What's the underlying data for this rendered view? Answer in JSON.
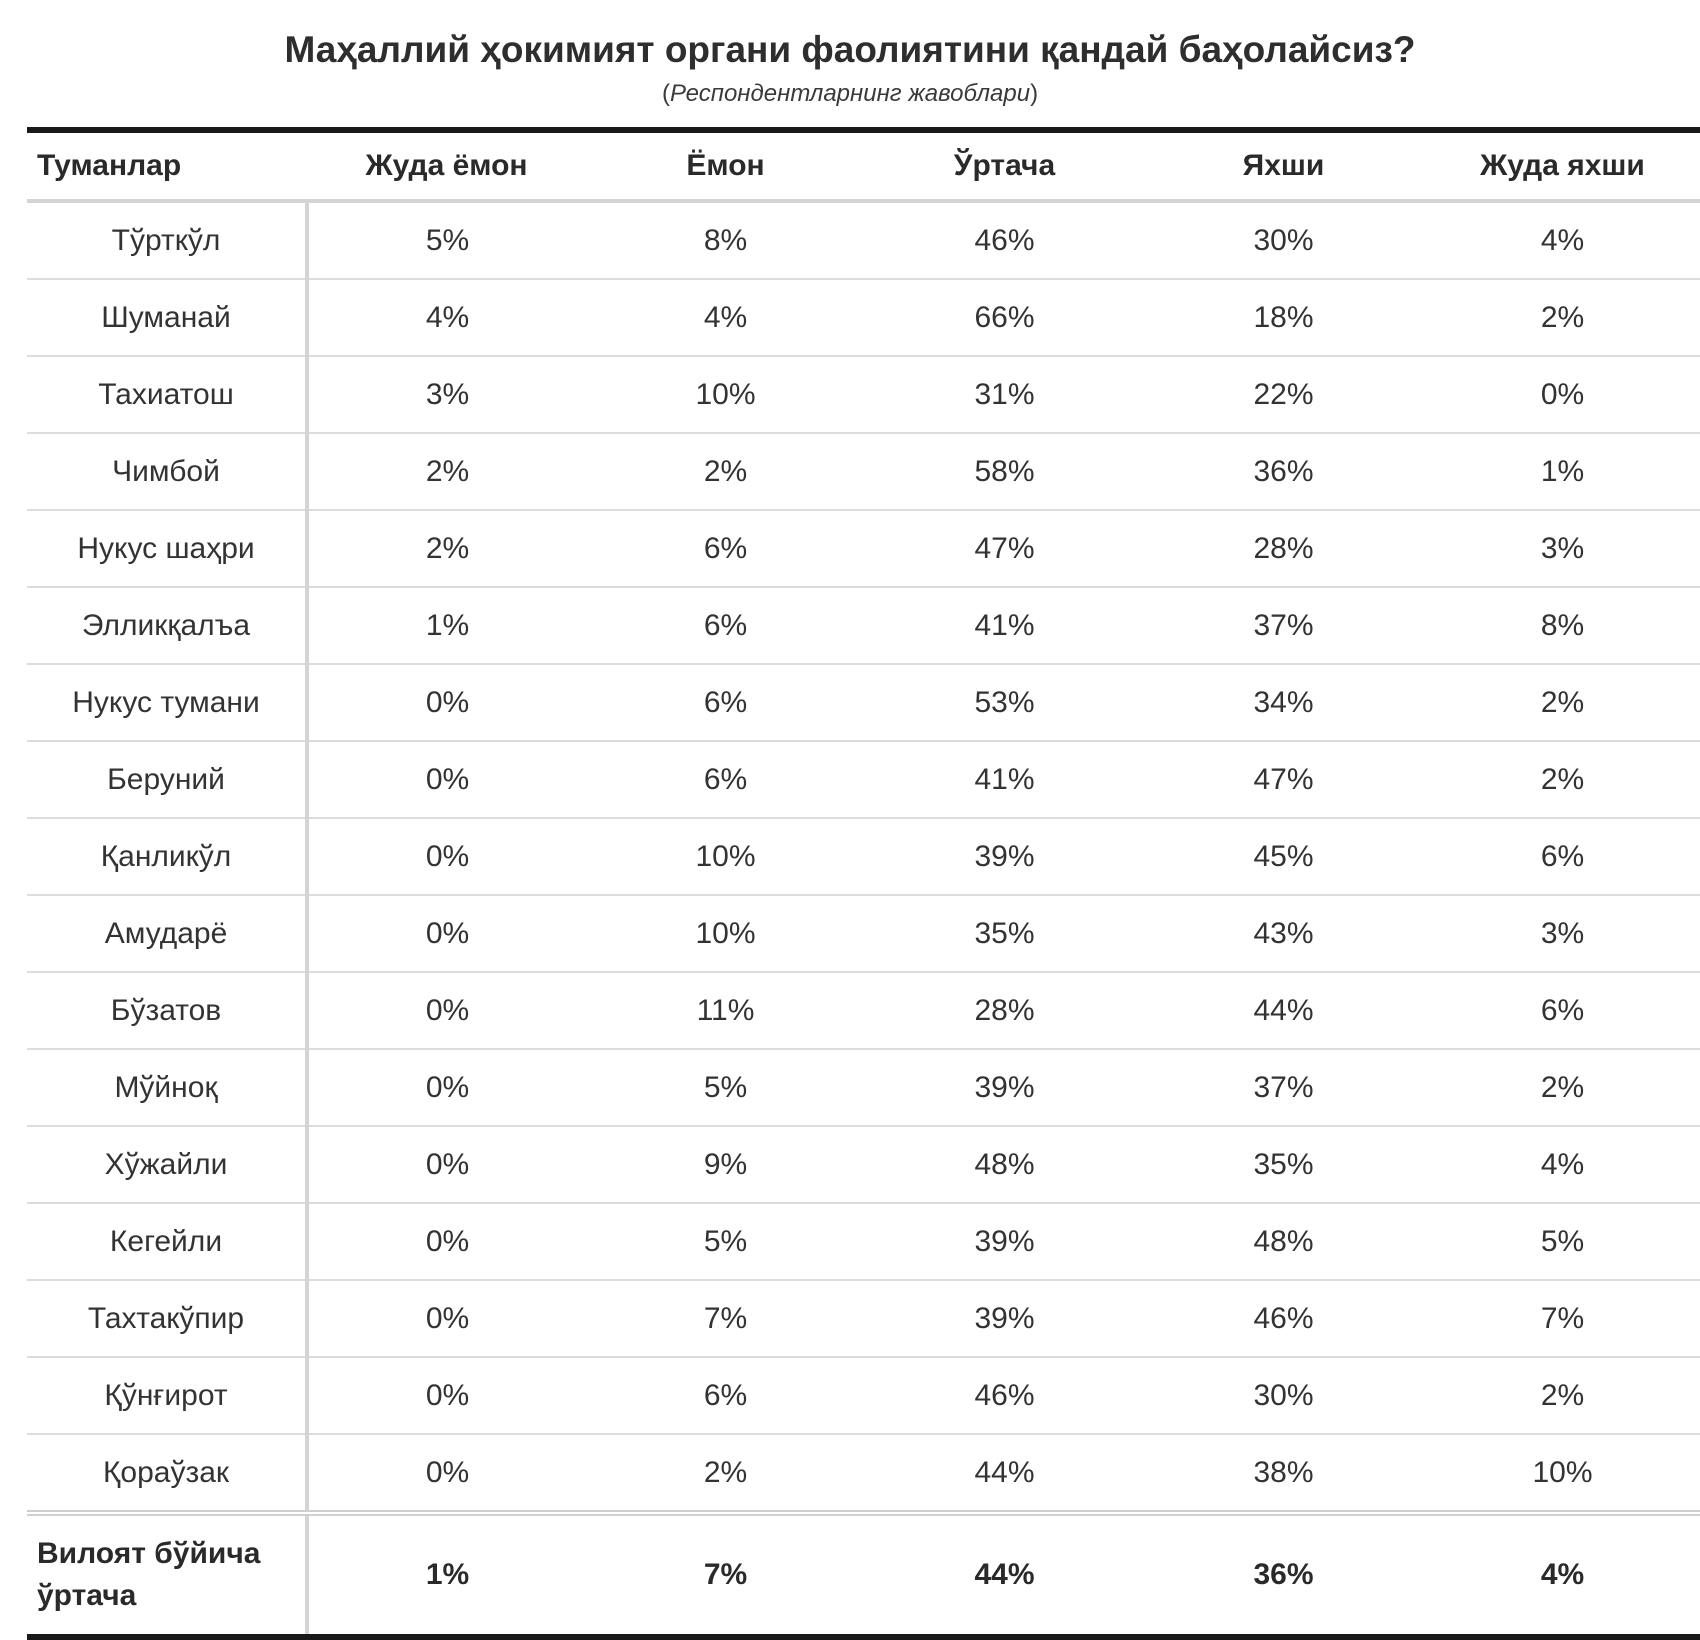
{
  "title": "Маҳаллий ҳокимият органи фаолиятини қандай баҳолайсиз?",
  "subtitle": {
    "open": "(",
    "text": "Респондентларнинг жавоблари",
    "close": ")"
  },
  "table": {
    "headers": [
      "Туманлар",
      "Жуда ёмон",
      "Ёмон",
      "Ўртача",
      "Яхши",
      "Жуда яхши"
    ],
    "rows": [
      {
        "name": "Тўрткўл",
        "values": [
          "5%",
          "8%",
          "46%",
          "30%",
          "4%"
        ]
      },
      {
        "name": "Шуманай",
        "values": [
          "4%",
          "4%",
          "66%",
          "18%",
          "2%"
        ]
      },
      {
        "name": "Тахиатош",
        "values": [
          "3%",
          "10%",
          "31%",
          "22%",
          "0%"
        ]
      },
      {
        "name": "Чимбой",
        "values": [
          "2%",
          "2%",
          "58%",
          "36%",
          "1%"
        ]
      },
      {
        "name": "Нукус шаҳри",
        "values": [
          "2%",
          "6%",
          "47%",
          "28%",
          "3%"
        ]
      },
      {
        "name": "Элликқалъа",
        "values": [
          "1%",
          "6%",
          "41%",
          "37%",
          "8%"
        ]
      },
      {
        "name": "Нукус тумани",
        "values": [
          "0%",
          "6%",
          "53%",
          "34%",
          "2%"
        ]
      },
      {
        "name": "Беруний",
        "values": [
          "0%",
          "6%",
          "41%",
          "47%",
          "2%"
        ]
      },
      {
        "name": "Қанликўл",
        "values": [
          "0%",
          "10%",
          "39%",
          "45%",
          "6%"
        ]
      },
      {
        "name": "Амударё",
        "values": [
          "0%",
          "10%",
          "35%",
          "43%",
          "3%"
        ]
      },
      {
        "name": "Бўзатов",
        "values": [
          "0%",
          "11%",
          "28%",
          "44%",
          "6%"
        ]
      },
      {
        "name": "Мўйноқ",
        "values": [
          "0%",
          "5%",
          "39%",
          "37%",
          "2%"
        ]
      },
      {
        "name": "Хўжайли",
        "values": [
          "0%",
          "9%",
          "48%",
          "35%",
          "4%"
        ]
      },
      {
        "name": "Кегейли",
        "values": [
          "0%",
          "5%",
          "39%",
          "48%",
          "5%"
        ]
      },
      {
        "name": "Тахтакўпир",
        "values": [
          "0%",
          "7%",
          "39%",
          "46%",
          "7%"
        ]
      },
      {
        "name": "Қўнғирот",
        "values": [
          "0%",
          "6%",
          "46%",
          "30%",
          "2%"
        ]
      },
      {
        "name": "Қораўзак",
        "values": [
          "0%",
          "2%",
          "44%",
          "38%",
          "10%"
        ]
      }
    ],
    "footer": {
      "name_line1": "Вилоят бўйича",
      "name_line2": "ўртача",
      "values": [
        "1%",
        "7%",
        "44%",
        "36%",
        "4%"
      ]
    }
  }
}
